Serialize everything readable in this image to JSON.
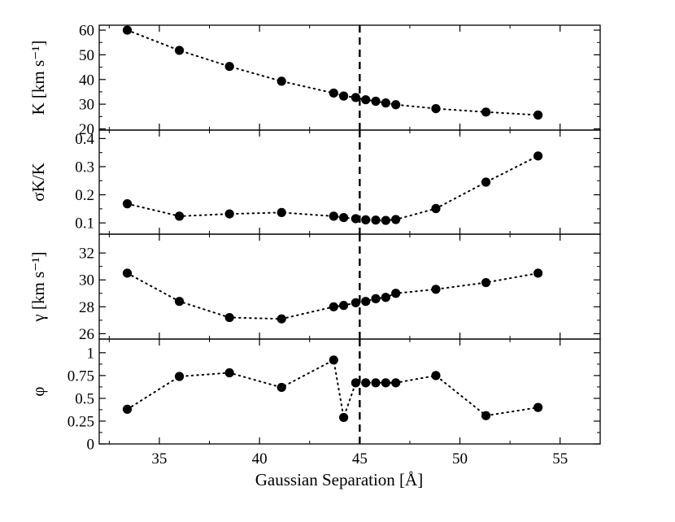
{
  "chart_data": {
    "type": "scatter",
    "marker": "filled-circle",
    "line_style": "dotted",
    "marker_color": "#000000",
    "reference_line": {
      "x": 45,
      "style": "dashed"
    },
    "xlabel": "Gaussian Separation [Å]",
    "xlim": [
      32,
      57
    ],
    "xticks": [
      35,
      40,
      45,
      50,
      55
    ],
    "xtick_labels": [
      "35",
      "40",
      "45",
      "50",
      "55"
    ],
    "panels": [
      {
        "ylabel": "K [km s⁻¹]",
        "ylim": [
          19.5,
          62
        ],
        "yticks": [
          20,
          30,
          40,
          50,
          60
        ],
        "ytick_labels": [
          "20",
          "30",
          "40",
          "50",
          "60"
        ],
        "points": [
          {
            "x": 33.4,
            "y": 60.0
          },
          {
            "x": 36.0,
            "y": 51.8
          },
          {
            "x": 38.5,
            "y": 45.3
          },
          {
            "x": 41.1,
            "y": 39.3
          },
          {
            "x": 43.7,
            "y": 34.5
          },
          {
            "x": 44.2,
            "y": 33.3
          },
          {
            "x": 44.8,
            "y": 32.7
          },
          {
            "x": 45.3,
            "y": 31.8
          },
          {
            "x": 45.8,
            "y": 31.2
          },
          {
            "x": 46.3,
            "y": 30.5
          },
          {
            "x": 46.8,
            "y": 29.8
          },
          {
            "x": 48.8,
            "y": 28.2
          },
          {
            "x": 51.3,
            "y": 26.8
          },
          {
            "x": 53.9,
            "y": 25.6
          }
        ]
      },
      {
        "ylabel": "σK/K",
        "ylim": [
          0.06,
          0.43
        ],
        "yticks": [
          0.1,
          0.2,
          0.3,
          0.4
        ],
        "ytick_labels": [
          "0.1",
          "0.2",
          "0.3",
          "0.4"
        ],
        "points": [
          {
            "x": 33.4,
            "y": 0.168
          },
          {
            "x": 36.0,
            "y": 0.124
          },
          {
            "x": 38.5,
            "y": 0.132
          },
          {
            "x": 41.1,
            "y": 0.137
          },
          {
            "x": 43.7,
            "y": 0.124
          },
          {
            "x": 44.2,
            "y": 0.119
          },
          {
            "x": 44.8,
            "y": 0.115
          },
          {
            "x": 45.3,
            "y": 0.111
          },
          {
            "x": 45.8,
            "y": 0.11
          },
          {
            "x": 46.3,
            "y": 0.109
          },
          {
            "x": 46.8,
            "y": 0.112
          },
          {
            "x": 48.8,
            "y": 0.151
          },
          {
            "x": 51.3,
            "y": 0.245
          },
          {
            "x": 53.9,
            "y": 0.338
          }
        ]
      },
      {
        "ylabel": "γ [km s⁻¹]",
        "ylim": [
          25.6,
          33.4
        ],
        "yticks": [
          26,
          28,
          30,
          32
        ],
        "ytick_labels": [
          "26",
          "28",
          "30",
          "32"
        ],
        "points": [
          {
            "x": 33.4,
            "y": 30.5
          },
          {
            "x": 36.0,
            "y": 28.4
          },
          {
            "x": 38.5,
            "y": 27.2
          },
          {
            "x": 41.1,
            "y": 27.1
          },
          {
            "x": 43.7,
            "y": 28.0
          },
          {
            "x": 44.2,
            "y": 28.1
          },
          {
            "x": 44.8,
            "y": 28.3
          },
          {
            "x": 45.3,
            "y": 28.4
          },
          {
            "x": 45.8,
            "y": 28.6
          },
          {
            "x": 46.3,
            "y": 28.7
          },
          {
            "x": 46.8,
            "y": 29.0
          },
          {
            "x": 48.8,
            "y": 29.3
          },
          {
            "x": 51.3,
            "y": 29.8
          },
          {
            "x": 53.9,
            "y": 30.5
          }
        ]
      },
      {
        "ylabel": "φ",
        "ylim": [
          0,
          1.15
        ],
        "yticks": [
          0,
          0.25,
          0.5,
          0.75,
          1
        ],
        "ytick_labels": [
          "0",
          "0.25",
          "0.5",
          "0.75",
          "1"
        ],
        "points": [
          {
            "x": 33.4,
            "y": 0.38
          },
          {
            "x": 36.0,
            "y": 0.74
          },
          {
            "x": 38.5,
            "y": 0.78
          },
          {
            "x": 41.1,
            "y": 0.62
          },
          {
            "x": 43.7,
            "y": 0.92
          },
          {
            "x": 44.2,
            "y": 0.29
          },
          {
            "x": 44.8,
            "y": 0.67
          },
          {
            "x": 45.3,
            "y": 0.67
          },
          {
            "x": 45.8,
            "y": 0.67
          },
          {
            "x": 46.3,
            "y": 0.67
          },
          {
            "x": 46.8,
            "y": 0.67
          },
          {
            "x": 48.8,
            "y": 0.75
          },
          {
            "x": 51.3,
            "y": 0.31
          },
          {
            "x": 53.9,
            "y": 0.4
          }
        ]
      }
    ]
  }
}
